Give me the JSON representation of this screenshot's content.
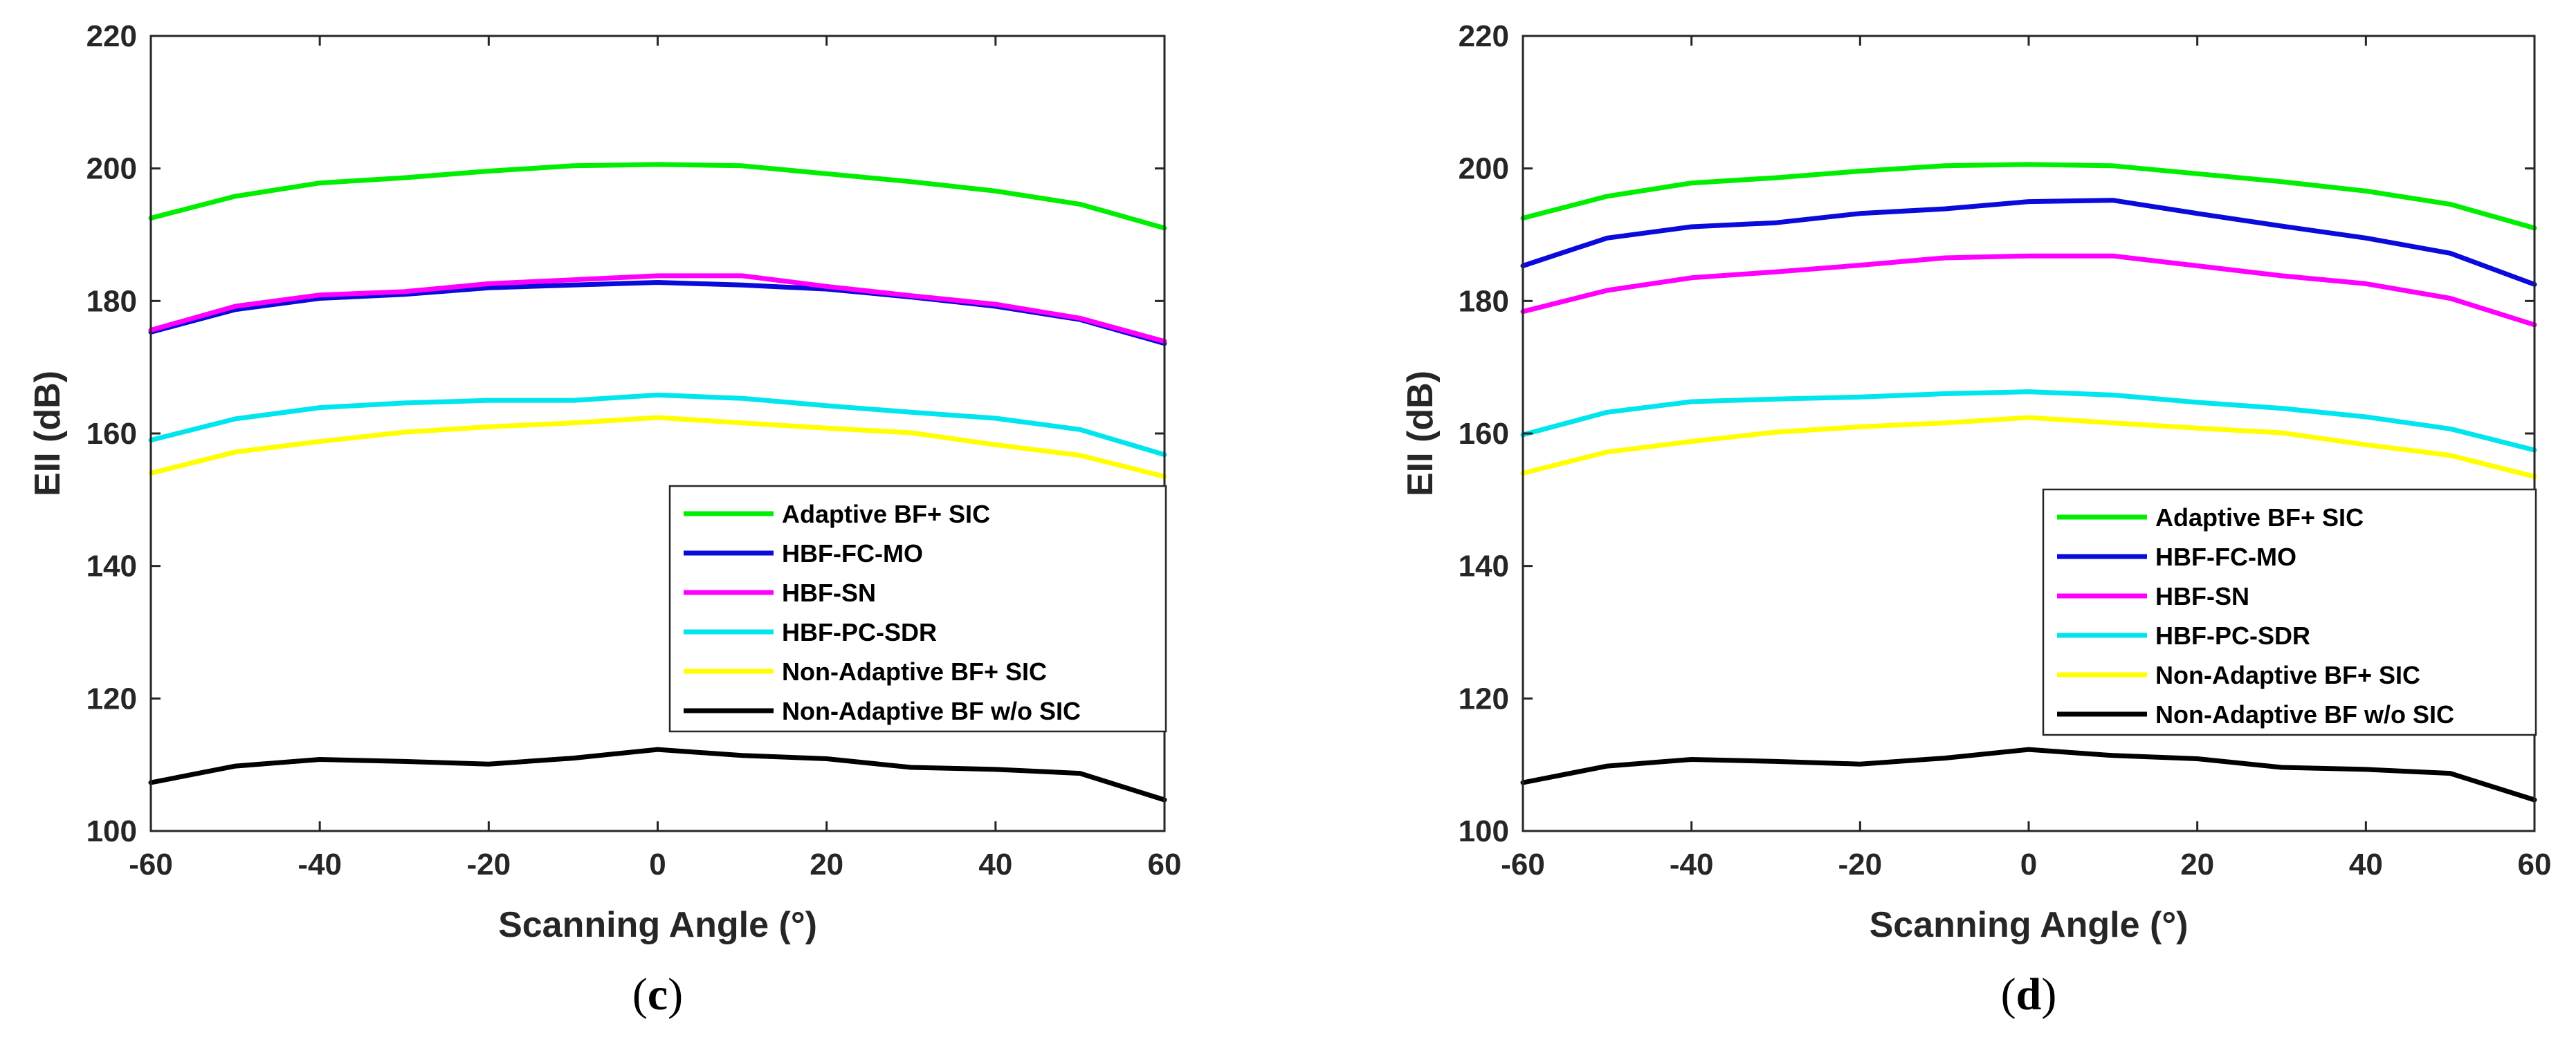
{
  "chart_data": [
    {
      "type": "line",
      "panel_label": "c",
      "xlabel": "Scanning Angle (°)",
      "ylabel": "EII (dB)",
      "xlim": [
        -60,
        60
      ],
      "ylim": [
        100,
        220
      ],
      "xticks": [
        "-60",
        "-40",
        "-20",
        "0",
        "20",
        "40",
        "60"
      ],
      "yticks": [
        "100",
        "120",
        "140",
        "160",
        "180",
        "200",
        "220"
      ],
      "grid": false,
      "legend_position": "lower-right",
      "x": [
        -60,
        -50,
        -40,
        -30,
        -20,
        -10,
        0,
        10,
        20,
        30,
        40,
        50,
        60
      ],
      "series": [
        {
          "name": "Adaptive BF+ SIC",
          "color": "#00ee00",
          "values": [
            192.5,
            195.8,
            197.8,
            198.6,
            199.6,
            200.4,
            200.6,
            200.4,
            199.2,
            198.0,
            196.6,
            194.6,
            191.0
          ]
        },
        {
          "name": "HBF-FC-MO",
          "color": "#0a0adc",
          "values": [
            175.3,
            178.7,
            180.4,
            181.0,
            182.0,
            182.4,
            182.8,
            182.4,
            181.8,
            180.6,
            179.2,
            177.2,
            173.6
          ]
        },
        {
          "name": "HBF-SN",
          "color": "#ff00ff",
          "values": [
            175.6,
            179.2,
            180.9,
            181.4,
            182.6,
            183.2,
            183.8,
            183.8,
            182.2,
            180.8,
            179.5,
            177.4,
            173.9
          ]
        },
        {
          "name": "HBF-PC-SDR",
          "color": "#00e5ee",
          "values": [
            159.0,
            162.2,
            163.9,
            164.6,
            165.0,
            165.0,
            165.8,
            165.3,
            164.2,
            163.2,
            162.3,
            160.6,
            156.8
          ]
        },
        {
          "name": "Non-Adaptive BF+ SIC",
          "color": "#ffff00",
          "values": [
            154.0,
            157.2,
            158.8,
            160.2,
            161.0,
            161.6,
            162.4,
            161.6,
            160.8,
            160.1,
            158.3,
            156.7,
            153.5
          ]
        },
        {
          "name": "Non-Adaptive BF w/o SIC",
          "color": "#000000",
          "values": [
            107.3,
            109.8,
            110.8,
            110.5,
            110.1,
            111.0,
            112.3,
            111.4,
            110.9,
            109.6,
            109.3,
            108.7,
            104.7
          ]
        }
      ]
    },
    {
      "type": "line",
      "panel_label": "d",
      "xlabel": "Scanning Angle (°)",
      "ylabel": "EII (dB)",
      "xlim": [
        -60,
        60
      ],
      "ylim": [
        100,
        220
      ],
      "xticks": [
        "-60",
        "-40",
        "-20",
        "0",
        "20",
        "40",
        "60"
      ],
      "yticks": [
        "100",
        "120",
        "140",
        "160",
        "180",
        "200",
        "220"
      ],
      "grid": false,
      "legend_position": "lower-right",
      "x": [
        -60,
        -50,
        -40,
        -30,
        -20,
        -10,
        0,
        10,
        20,
        30,
        40,
        50,
        60
      ],
      "series": [
        {
          "name": "Adaptive BF+ SIC",
          "color": "#00ee00",
          "values": [
            192.5,
            195.8,
            197.8,
            198.6,
            199.6,
            200.4,
            200.6,
            200.4,
            199.2,
            198.0,
            196.6,
            194.6,
            191.0
          ]
        },
        {
          "name": "HBF-FC-MO",
          "color": "#0a0adc",
          "values": [
            185.3,
            189.5,
            191.2,
            191.8,
            193.2,
            193.9,
            195.0,
            195.2,
            193.2,
            191.3,
            189.5,
            187.2,
            182.5
          ]
        },
        {
          "name": "HBF-SN",
          "color": "#ff00ff",
          "values": [
            178.4,
            181.6,
            183.5,
            184.4,
            185.4,
            186.5,
            186.8,
            186.8,
            185.3,
            183.8,
            182.6,
            180.4,
            176.4
          ]
        },
        {
          "name": "HBF-PC-SDR",
          "color": "#00e5ee",
          "values": [
            159.8,
            163.2,
            164.8,
            165.2,
            165.5,
            166.0,
            166.3,
            165.8,
            164.7,
            163.8,
            162.5,
            160.7,
            157.5
          ]
        },
        {
          "name": "Non-Adaptive BF+ SIC",
          "color": "#ffff00",
          "values": [
            154.0,
            157.2,
            158.8,
            160.2,
            161.0,
            161.6,
            162.4,
            161.6,
            160.8,
            160.1,
            158.3,
            156.7,
            153.5
          ]
        },
        {
          "name": "Non-Adaptive BF w/o SIC",
          "color": "#000000",
          "values": [
            107.3,
            109.8,
            110.8,
            110.5,
            110.1,
            111.0,
            112.3,
            111.4,
            110.9,
            109.6,
            109.3,
            108.7,
            104.7
          ]
        }
      ]
    }
  ]
}
